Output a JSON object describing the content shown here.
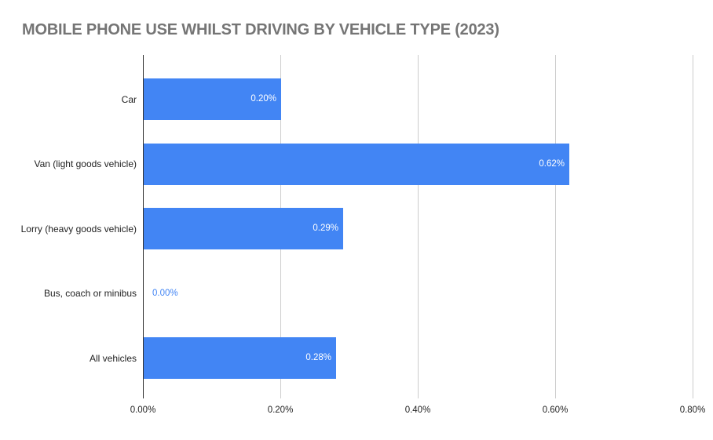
{
  "chart_data": {
    "type": "bar",
    "orientation": "horizontal",
    "title": "MOBILE PHONE USE WHILST DRIVING BY VEHICLE TYPE (2023)",
    "categories": [
      "Car",
      "Van (light goods vehicle)",
      "Lorry (heavy goods vehicle)",
      "Bus, coach or minibus",
      "All vehicles"
    ],
    "values": [
      0.2,
      0.62,
      0.29,
      0.0,
      0.28
    ],
    "value_labels": [
      "0.20%",
      "0.62%",
      "0.29%",
      "0.00%",
      "0.28%"
    ],
    "x_ticks": [
      {
        "value": 0.0,
        "label": "0.00%"
      },
      {
        "value": 0.2,
        "label": "0.20%"
      },
      {
        "value": 0.4,
        "label": "0.40%"
      },
      {
        "value": 0.6,
        "label": "0.60%"
      },
      {
        "value": 0.8,
        "label": "0.80%"
      }
    ],
    "xlim": [
      0.0,
      0.8
    ],
    "xlabel": "",
    "ylabel": "",
    "grid": true,
    "legend": "none",
    "colors": {
      "bar": "#4285f4",
      "title": "#757575",
      "category_label": "#222222",
      "tick_label": "#222222",
      "gridline": "#cccccc",
      "baseline": "#333333",
      "value_label_inside": "#ffffff",
      "value_label_outside": "#4285f4",
      "background": "#ffffff"
    }
  }
}
